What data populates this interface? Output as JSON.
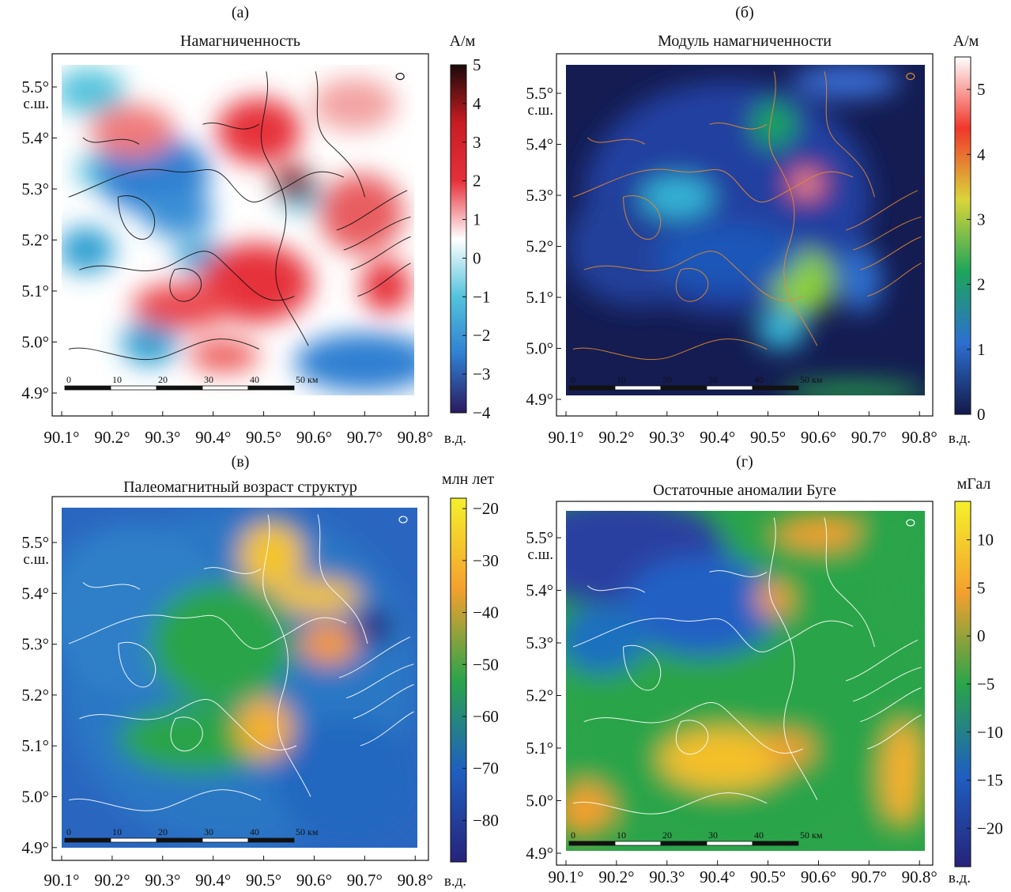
{
  "panels": [
    {
      "label": "(а)",
      "title": "Намагниченность",
      "unit": "А/м",
      "colorbar_ticks": [
        "5",
        "4",
        "3",
        "2",
        "1",
        "0",
        "−1",
        "−2",
        "−3",
        "−4"
      ],
      "colorbar_range": [
        -4,
        5
      ],
      "colors": [
        "#2b1a5e",
        "#2f7fd1",
        "#53c3dc",
        "#ffffff",
        "#e6303a",
        "#c81c22",
        "#1a0a0a"
      ]
    },
    {
      "label": "(б)",
      "title": "Модуль намагниченности",
      "unit": "А/м",
      "colorbar_ticks": [
        "5",
        "4",
        "3",
        "2",
        "1",
        "0"
      ],
      "colorbar_range": [
        0,
        5.5
      ],
      "colors": [
        "#131a4a",
        "#2d6fd0",
        "#1ea55a",
        "#d9d53a",
        "#f0372b",
        "#ffffff"
      ]
    },
    {
      "label": "(в)",
      "title": "Палеомагнитный возраст структур",
      "unit": "млн лет",
      "colorbar_ticks": [
        "−20",
        "−30",
        "−40",
        "−50",
        "−60",
        "−70",
        "−80"
      ],
      "colorbar_range": [
        -88,
        -18
      ],
      "colors": [
        "#26237a",
        "#1f5fc0",
        "#2aa44a",
        "#f4a02e",
        "#f4f02c"
      ]
    },
    {
      "label": "(г)",
      "title": "Остаточные аномалии Буге",
      "unit": "мГал",
      "colorbar_ticks": [
        "10",
        "5",
        "0",
        "−5",
        "−10",
        "−15",
        "−20"
      ],
      "colorbar_range": [
        -24,
        14
      ],
      "colors": [
        "#26237a",
        "#1f5fc0",
        "#2aa44a",
        "#f4a02e",
        "#f4f02c"
      ]
    }
  ],
  "axes": {
    "lat_ticks": [
      "5.5°",
      "5.4°",
      "5.3°",
      "5.2°",
      "5.1°",
      "5.0°",
      "4.9°"
    ],
    "lat_unit": "с.ш.",
    "lon_ticks": [
      "90.1°",
      "90.2°",
      "90.3°",
      "90.4°",
      "90.5°",
      "90.6°",
      "90.7°",
      "90.8°"
    ],
    "lon_unit": "в.д."
  },
  "scale_bar": {
    "labels": [
      "0",
      "10",
      "20",
      "30",
      "40",
      "50 км"
    ]
  }
}
